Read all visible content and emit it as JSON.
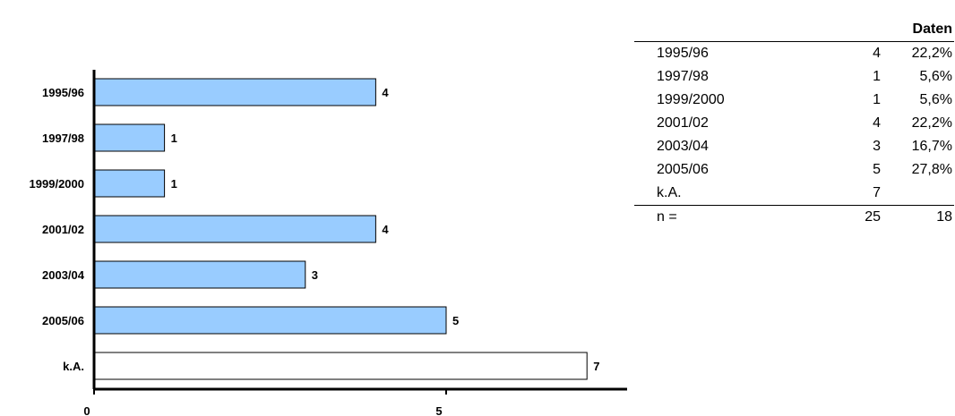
{
  "chart_data": {
    "type": "bar",
    "orientation": "horizontal",
    "categories": [
      "1995/96",
      "1997/98",
      "1999/2000",
      "2001/02",
      "2003/04",
      "2005/06",
      "k.A."
    ],
    "values": [
      4,
      1,
      1,
      4,
      3,
      5,
      7
    ],
    "bar_colors": [
      "#99ccff",
      "#99ccff",
      "#99ccff",
      "#99ccff",
      "#99ccff",
      "#99ccff",
      "#ffffff"
    ],
    "xticks": [
      "0",
      "5"
    ],
    "xlim": [
      0,
      9
    ],
    "grid": false
  },
  "table": {
    "header": "Daten",
    "rows": [
      {
        "label": "1995/96",
        "count": "4",
        "pct": "22,2%"
      },
      {
        "label": "1997/98",
        "count": "1",
        "pct": "5,6%"
      },
      {
        "label": "1999/2000",
        "count": "1",
        "pct": "5,6%"
      },
      {
        "label": "2001/02",
        "count": "4",
        "pct": "22,2%"
      },
      {
        "label": "2003/04",
        "count": "3",
        "pct": "16,7%"
      },
      {
        "label": "2005/06",
        "count": "5",
        "pct": "27,8%"
      },
      {
        "label": "k.A.",
        "count": "7",
        "pct": ""
      }
    ],
    "total": {
      "label": "n =",
      "count": "25",
      "pct": "18"
    }
  }
}
